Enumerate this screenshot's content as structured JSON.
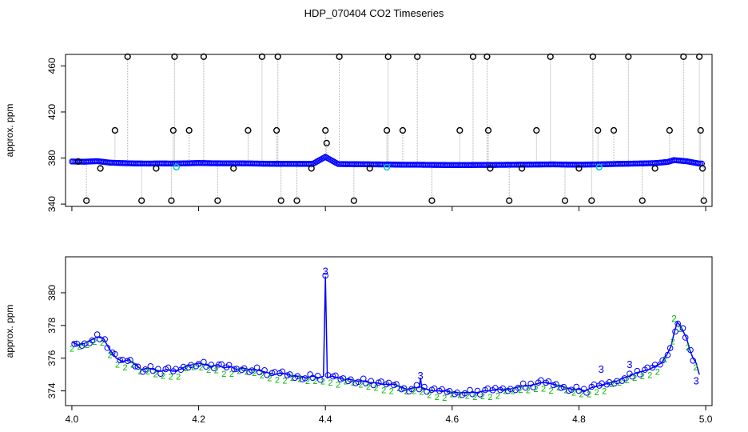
{
  "title": "HDP_070404  CO2 Timeseries",
  "chart_data": [
    {
      "type": "scatter",
      "title": "",
      "xlabel": "",
      "ylabel": "approx. ppm",
      "xlim": [
        3.99,
        5.01
      ],
      "ylim": [
        338,
        470
      ],
      "xticks": [
        4.0,
        4.2,
        4.4,
        4.6,
        4.8,
        5.0
      ],
      "xtick_labels": [
        "4.0",
        "4.2",
        "4.4",
        "4.6",
        "4.8",
        "5.0"
      ],
      "yticks": [
        340,
        380,
        420,
        460
      ],
      "ytick_labels": [
        "340",
        "380",
        "420",
        "460"
      ],
      "grid": false,
      "colors": {
        "raw": "#000000",
        "filtered": "#0000ff",
        "flag": "#00cccc",
        "trace": "#aaaaaa"
      },
      "series": [
        {
          "role": "outliers",
          "x": [
            4.01,
            4.023,
            4.045,
            4.068,
            4.088,
            4.11,
            4.133,
            4.157,
            4.16,
            4.162,
            4.185,
            4.208,
            4.23,
            4.255,
            4.278,
            4.3,
            4.323,
            4.325,
            4.33,
            4.355,
            4.378,
            4.4,
            4.402,
            4.422,
            4.445,
            4.47,
            4.497,
            4.499,
            4.522,
            4.545,
            4.568,
            4.612,
            4.633,
            4.655,
            4.657,
            4.66,
            4.69,
            4.71,
            4.733,
            4.755,
            4.778,
            4.8,
            4.82,
            4.822,
            4.83,
            4.855,
            4.878,
            4.9,
            4.92,
            4.943,
            4.965,
            4.99,
            4.992,
            4.995,
            4.997
          ],
          "y": [
            377,
            343,
            371,
            404,
            468,
            343,
            371,
            343,
            404,
            468,
            404,
            468,
            343,
            371,
            404,
            468,
            404,
            468,
            343,
            343,
            371,
            404,
            393,
            468,
            343,
            371,
            404,
            468,
            404,
            468,
            343,
            404,
            468,
            468,
            404,
            371,
            343,
            371,
            404,
            468,
            343,
            371,
            343,
            468,
            404,
            404,
            468,
            343,
            371,
            404,
            468,
            468,
            404,
            371,
            343
          ]
        },
        {
          "role": "filtered",
          "x": [
            4.0,
            4.02,
            4.04,
            4.06,
            4.08,
            4.1,
            4.12,
            4.14,
            4.16,
            4.18,
            4.2,
            4.22,
            4.24,
            4.26,
            4.28,
            4.3,
            4.32,
            4.34,
            4.36,
            4.38,
            4.4,
            4.42,
            4.44,
            4.46,
            4.48,
            4.5,
            4.52,
            4.54,
            4.56,
            4.58,
            4.6,
            4.62,
            4.64,
            4.66,
            4.68,
            4.7,
            4.72,
            4.74,
            4.76,
            4.78,
            4.8,
            4.82,
            4.84,
            4.86,
            4.88,
            4.9,
            4.92,
            4.94,
            4.95,
            4.96,
            4.97,
            4.98,
            4.99
          ],
          "y": [
            377,
            376.8,
            377.3,
            376,
            375.6,
            375.3,
            375.2,
            375.3,
            375.2,
            375.4,
            375.7,
            375.5,
            375.4,
            375.4,
            375.3,
            375.1,
            375,
            375,
            374.9,
            374.9,
            381,
            374.8,
            374.7,
            374.6,
            374.5,
            374.4,
            374.2,
            374.2,
            374.1,
            374,
            373.9,
            373.9,
            374,
            374,
            374.1,
            374.2,
            374.3,
            374.4,
            374.5,
            374.3,
            374.2,
            374.4,
            374.6,
            374.9,
            375.1,
            375.3,
            375.6,
            376.6,
            378.2,
            377.7,
            377.2,
            376.2,
            375.2
          ]
        }
      ]
    },
    {
      "type": "line",
      "title": "",
      "xlabel": "",
      "ylabel": "approx. ppm",
      "xlim": [
        3.99,
        5.01
      ],
      "ylim": [
        373.1,
        382.2
      ],
      "xticks": [
        4.0,
        4.2,
        4.4,
        4.6,
        4.8,
        5.0
      ],
      "xtick_labels": [
        "4.0",
        "4.2",
        "4.4",
        "4.6",
        "4.8",
        "5.0"
      ],
      "yticks": [
        374,
        376,
        378,
        380
      ],
      "ytick_labels": [
        "374",
        "376",
        "378",
        "380"
      ],
      "grid": false,
      "colors": {
        "line": "#0000ff",
        "marker3": "#0000ff",
        "marker2": "#00bb00"
      },
      "series": [
        {
          "name": "",
          "x": [
            4.0,
            4.01,
            4.02,
            4.03,
            4.04,
            4.05,
            4.06,
            4.07,
            4.08,
            4.09,
            4.1,
            4.11,
            4.12,
            4.13,
            4.14,
            4.15,
            4.16,
            4.17,
            4.18,
            4.19,
            4.2,
            4.21,
            4.22,
            4.23,
            4.24,
            4.25,
            4.26,
            4.27,
            4.28,
            4.29,
            4.3,
            4.31,
            4.32,
            4.33,
            4.34,
            4.35,
            4.36,
            4.37,
            4.38,
            4.39,
            4.397,
            4.4,
            4.403,
            4.41,
            4.42,
            4.43,
            4.44,
            4.45,
            4.46,
            4.47,
            4.48,
            4.49,
            4.5,
            4.51,
            4.52,
            4.53,
            4.54,
            4.548,
            4.55,
            4.552,
            4.56,
            4.57,
            4.58,
            4.59,
            4.6,
            4.61,
            4.62,
            4.63,
            4.64,
            4.65,
            4.66,
            4.67,
            4.68,
            4.69,
            4.7,
            4.71,
            4.72,
            4.73,
            4.74,
            4.75,
            4.76,
            4.77,
            4.78,
            4.79,
            4.8,
            4.81,
            4.82,
            4.83,
            4.84,
            4.85,
            4.86,
            4.87,
            4.88,
            4.89,
            4.9,
            4.91,
            4.92,
            4.93,
            4.94,
            4.945,
            4.95,
            4.955,
            4.96,
            4.965,
            4.97,
            4.975,
            4.98,
            4.985,
            4.99
          ],
          "y": [
            377,
            376.8,
            376.9,
            377.1,
            377.3,
            377.2,
            376.5,
            376,
            375.8,
            375.9,
            375.6,
            375.3,
            375.4,
            375.3,
            375.2,
            375.3,
            375.2,
            375.3,
            375.5,
            375.6,
            375.7,
            375.6,
            375.5,
            375.6,
            375.4,
            375.5,
            375.3,
            375.4,
            375.3,
            375.3,
            375.2,
            375.1,
            375,
            375.1,
            375,
            374.9,
            374.9,
            374.8,
            374.9,
            374.8,
            374.9,
            381,
            374.8,
            374.9,
            374.8,
            374.7,
            374.7,
            374.6,
            374.6,
            374.5,
            374.5,
            374.4,
            374.4,
            374.4,
            374.2,
            374.1,
            374.2,
            374.2,
            374.8,
            374.2,
            374.1,
            374,
            374,
            374,
            373.9,
            373.9,
            373.9,
            373.9,
            373.9,
            374,
            374,
            374.1,
            374.1,
            374.1,
            374.2,
            374.3,
            374.3,
            374.4,
            374.5,
            374.5,
            374.4,
            374.3,
            374.2,
            374.1,
            374.1,
            374,
            374.2,
            374.3,
            374.4,
            374.5,
            374.6,
            374.8,
            374.9,
            375.1,
            375.2,
            375.3,
            375.5,
            375.7,
            376.3,
            376.7,
            377.5,
            378.2,
            378,
            377.6,
            377.2,
            376.5,
            376,
            375.7,
            375
          ]
        }
      ]
    }
  ]
}
